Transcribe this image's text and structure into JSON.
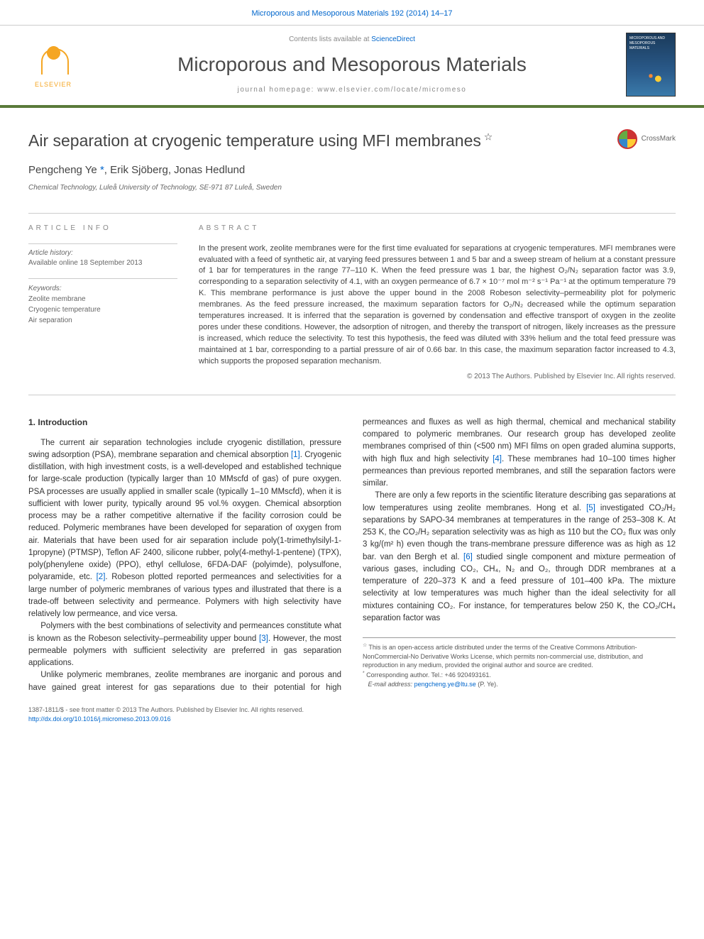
{
  "header": {
    "citation": "Microporous and Mesoporous Materials 192 (2014) 14–17",
    "contents_prefix": "Contents lists available at ",
    "contents_link": "ScienceDirect",
    "journal_title": "Microporous and Mesoporous Materials",
    "homepage_prefix": "journal homepage: ",
    "homepage_url": "www.elsevier.com/locate/micromeso",
    "publisher": "ELSEVIER",
    "cover_text": "MICROPOROUS AND MESOPOROUS MATERIALS"
  },
  "article": {
    "title": "Air separation at cryogenic temperature using MFI membranes",
    "crossmark": "CrossMark",
    "authors_html": "Pengcheng Ye <a data-name='corresponding-marker' data-interactable='false'>*</a>, Erik Sjöberg, Jonas Hedlund",
    "affiliation": "Chemical Technology, Luleå University of Technology, SE-971 87 Luleå, Sweden"
  },
  "info": {
    "heading": "article info",
    "history_label": "Article history:",
    "history_value": "Available online 18 September 2013",
    "keywords_label": "Keywords:",
    "keywords": [
      "Zeolite membrane",
      "Cryogenic temperature",
      "Air separation"
    ]
  },
  "abstract": {
    "heading": "abstract",
    "text": "In the present work, zeolite membranes were for the first time evaluated for separations at cryogenic temperatures. MFI membranes were evaluated with a feed of synthetic air, at varying feed pressures between 1 and 5 bar and a sweep stream of helium at a constant pressure of 1 bar for temperatures in the range 77–110 K. When the feed pressure was 1 bar, the highest O₂/N₂ separation factor was 3.9, corresponding to a separation selectivity of 4.1, with an oxygen permeance of 6.7 × 10⁻⁷ mol m⁻² s⁻¹ Pa⁻¹ at the optimum temperature 79 K. This membrane performance is just above the upper bound in the 2008 Robeson selectivity–permeability plot for polymeric membranes. As the feed pressure increased, the maximum separation factors for O₂/N₂ decreased while the optimum separation temperatures increased. It is inferred that the separation is governed by condensation and effective transport of oxygen in the zeolite pores under these conditions. However, the adsorption of nitrogen, and thereby the transport of nitrogen, likely increases as the pressure is increased, which reduce the selectivity. To test this hypothesis, the feed was diluted with 33% helium and the total feed pressure was maintained at 1 bar, corresponding to a partial pressure of air of 0.66 bar. In this case, the maximum separation factor increased to 4.3, which supports the proposed separation mechanism.",
    "copyright": "© 2013 The Authors. Published by Elsevier Inc. All rights reserved."
  },
  "body": {
    "section_number": "1.",
    "section_title": "Introduction",
    "paragraphs": [
      "The current air separation technologies include cryogenic distillation, pressure swing adsorption (PSA), membrane separation and chemical absorption [1]. Cryogenic distillation, with high investment costs, is a well-developed and established technique for large-scale production (typically larger than 10 MMscfd of gas) of pure oxygen. PSA processes are usually applied in smaller scale (typically 1–10 MMscfd), when it is sufficient with lower purity, typically around 95 vol.% oxygen. Chemical absorption process may be a rather competitive alternative if the facility corrosion could be reduced. Polymeric membranes have been developed for separation of oxygen from air. Materials that have been used for air separation include poly(1-trimethylsilyl-1-1propyne) (PTMSP), Teflon AF 2400, silicone rubber, poly(4-methyl-1-pentene) (TPX), poly(phenylene oxide) (PPO), ethyl cellulose, 6FDA-DAF (polyimde), polysulfone, polyaramide, etc. [2]. Robeson plotted reported permeances and selectivities for a large number of polymeric membranes of various types and illustrated that there is a trade-off between selectivity and permeance. Polymers with high selectivity have relatively low permeance, and vice versa.",
      "Polymers with the best combinations of selectivity and permeances constitute what is known as the Robeson selectivity–permeability upper bound [3]. However, the most permeable polymers with sufficient selectivity are preferred in gas separation applications.",
      "Unlike polymeric membranes, zeolite membranes are inorganic and porous and have gained great interest for gas separations due to their potential for high permeances and fluxes as well as high thermal, chemical and mechanical stability compared to polymeric membranes. Our research group has developed zeolite membranes comprised of thin (<500 nm) MFI films on open graded alumina supports, with high flux and high selectivity [4]. These membranes had 10–100 times higher permeances than previous reported membranes, and still the separation factors were similar.",
      "There are only a few reports in the scientific literature describing gas separations at low temperatures using zeolite membranes. Hong et al. [5] investigated CO₂/H₂ separations by SAPO-34 membranes at temperatures in the range of 253–308 K. At 253 K, the CO₂/H₂ separation selectivity was as high as 110 but the CO₂ flux was only 3 kg/(m² h) even though the trans-membrane pressure difference was as high as 12 bar. van den Bergh et al. [6] studied single component and mixture permeation of various gases, including CO₂, CH₄, N₂ and O₂, through DDR membranes at a temperature of 220–373 K and a feed pressure of 101–400 kPa. The mixture selectivity at low temperatures was much higher than the ideal selectivity for all mixtures containing CO₂. For instance, for temperatures below 250 K, the CO₂/CH₄ separation factor was"
    ],
    "reference_colors": {
      "[1]": "#0066cc",
      "[2]": "#0066cc",
      "[3]": "#0066cc",
      "[4]": "#0066cc",
      "[5]": "#0066cc",
      "[6]": "#0066cc"
    }
  },
  "footnotes": {
    "open_access": "This is an open-access article distributed under the terms of the Creative Commons Attribution-NonCommercial-No Derivative Works License, which permits non-commercial use, distribution, and reproduction in any medium, provided the original author and source are credited.",
    "corresponding": "Corresponding author. Tel.: +46 920493161.",
    "email_label": "E-mail address:",
    "email": "pengcheng.ye@ltu.se",
    "email_person": "(P. Ye)."
  },
  "footer": {
    "issn": "1387-1811/$ - see front matter © 2013 The Authors. Published by Elsevier Inc. All rights reserved.",
    "doi": "http://dx.doi.org/10.1016/j.micromeso.2013.09.016"
  },
  "colors": {
    "link": "#0066cc",
    "border_green": "#5a7a3a",
    "text_gray": "#666666",
    "elsevier_orange": "#f5a623"
  }
}
